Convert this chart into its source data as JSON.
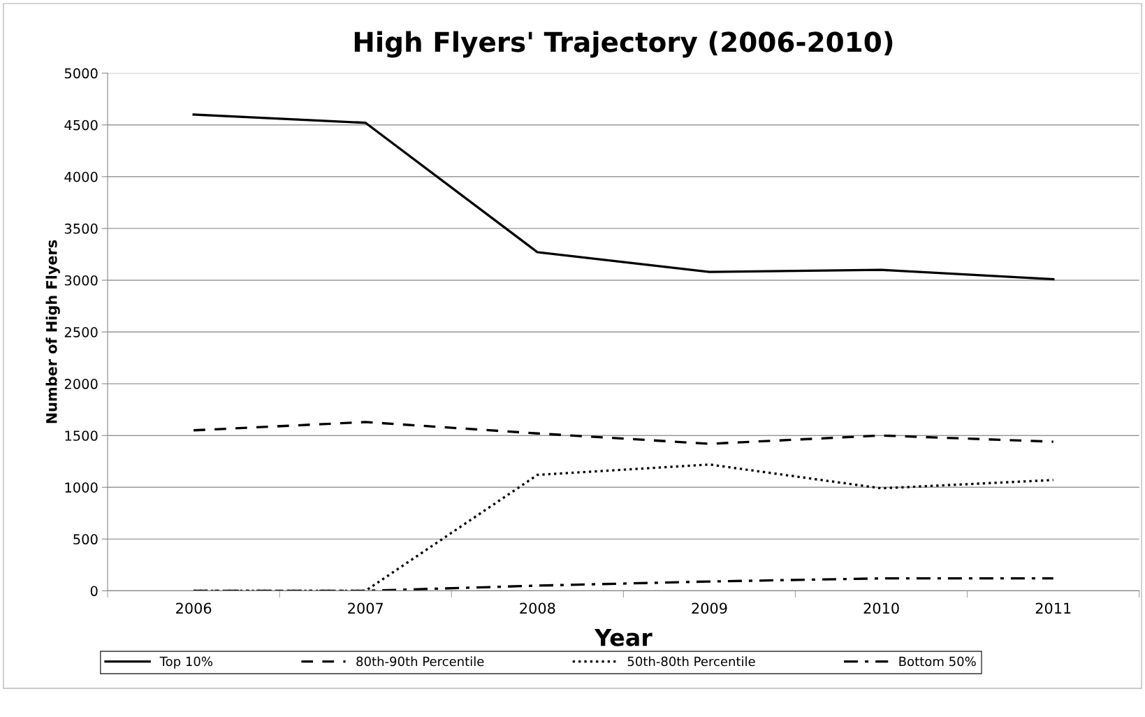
{
  "chart_data": {
    "type": "line",
    "title": "High Flyers' Trajectory (2006-2010)",
    "xlabel": "Year",
    "ylabel": "Number of High Flyers",
    "categories": [
      "2006",
      "2007",
      "2008",
      "2009",
      "2010",
      "2011"
    ],
    "series": [
      {
        "name": "Top 10%",
        "color": "#000000",
        "line_style": "solid",
        "values": [
          4600,
          4520,
          3270,
          3080,
          3100,
          3010
        ]
      },
      {
        "name": "80th-90th Percentile",
        "color": "#000000",
        "line_style": "dashed",
        "values": [
          1550,
          1630,
          1520,
          1420,
          1500,
          1440
        ]
      },
      {
        "name": "50th-80th Percentile",
        "color": "#000000",
        "line_style": "dotted",
        "values": [
          0,
          0,
          1120,
          1220,
          990,
          1070
        ]
      },
      {
        "name": "Bottom 50%",
        "color": "#000000",
        "line_style": "dashdot",
        "values": [
          0,
          0,
          50,
          90,
          120,
          120
        ]
      }
    ],
    "ylim": [
      0,
      5000
    ],
    "yticks": [
      0,
      500,
      1000,
      1500,
      2000,
      2500,
      3000,
      3500,
      4000,
      4500,
      5000
    ],
    "grid": "y",
    "legend": "bottom",
    "marker": "none"
  }
}
